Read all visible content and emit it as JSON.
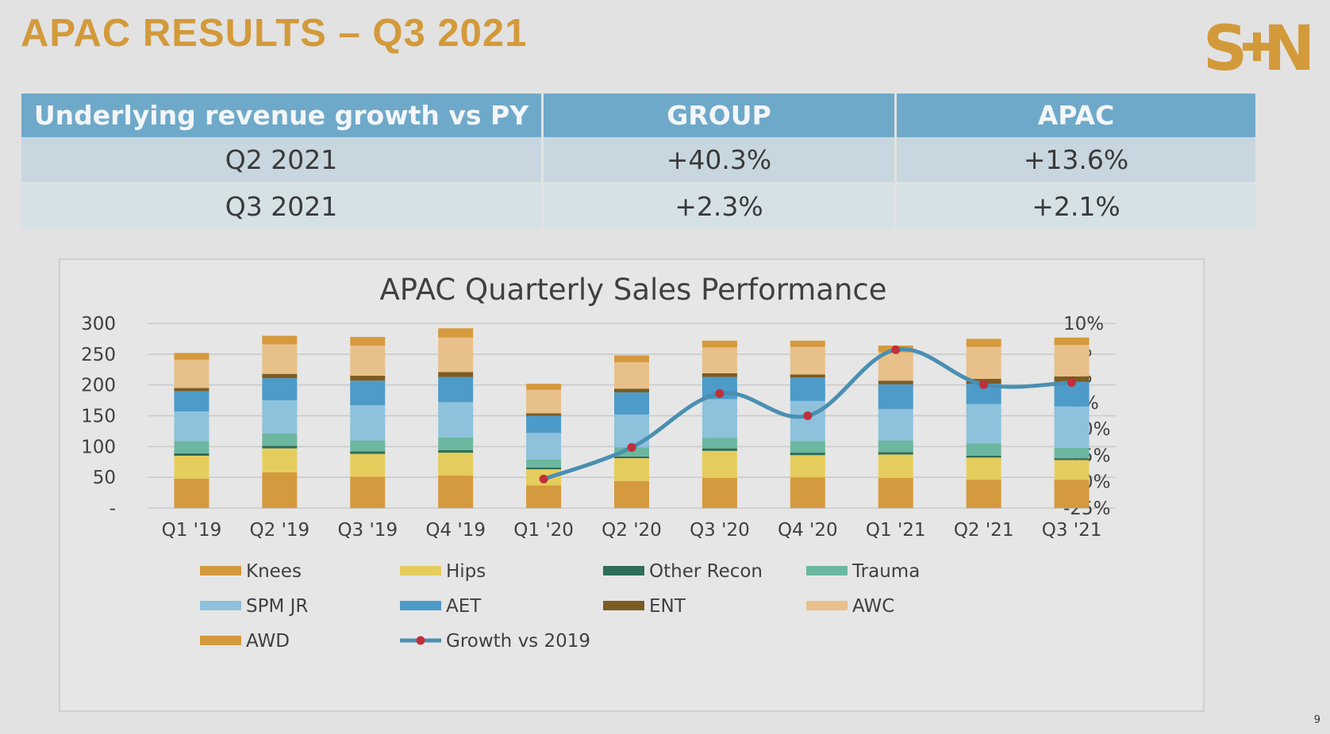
{
  "slide": {
    "title": "APAC RESULTS – Q3 2021",
    "logo_text": "S+N",
    "page_number": "9"
  },
  "table": {
    "headers": [
      "Underlying revenue growth vs PY",
      "GROUP",
      "APAC"
    ],
    "rows": [
      [
        "Q2 2021",
        "+40.3%",
        "+13.6%"
      ],
      [
        "Q3 2021",
        "+2.3%",
        "+2.1%"
      ]
    ]
  },
  "colors": {
    "title": "#d39a3a",
    "header": "#6fa9ca",
    "line": "#4a8fb2",
    "marker": "#c0303a"
  },
  "chart_data": {
    "type": "bar",
    "stacked": true,
    "title": "APAC Quarterly Sales Performance",
    "categories": [
      "Q1 '19",
      "Q2 '19",
      "Q3 '19",
      "Q4 '19",
      "Q1 '20",
      "Q2 '20",
      "Q3 '20",
      "Q4 '20",
      "Q1 '21",
      "Q2 '21",
      "Q3 '21"
    ],
    "ylim": [
      0,
      300
    ],
    "yticks": [
      "-",
      "50",
      "100",
      "150",
      "200",
      "250",
      "300"
    ],
    "y2lim": [
      -25,
      10
    ],
    "y2ticks": [
      "-25%",
      "-20%",
      "-15%",
      "-10%",
      "-5%",
      "0%",
      "5%",
      "10%"
    ],
    "grid": true,
    "legend_position": "bottom",
    "series": [
      {
        "name": "Knees",
        "color": "#d59a3d",
        "values": [
          48,
          58,
          51,
          53,
          37,
          44,
          49,
          50,
          49,
          46,
          46
        ]
      },
      {
        "name": "Hips",
        "color": "#e5cd5d",
        "values": [
          37,
          39,
          37,
          37,
          26,
          37,
          44,
          36,
          38,
          36,
          32
        ]
      },
      {
        "name": "Other Recon",
        "color": "#2f6e58",
        "values": [
          4,
          4,
          4,
          4,
          3,
          3,
          4,
          4,
          4,
          3,
          3
        ]
      },
      {
        "name": "Trauma",
        "color": "#6cb79f",
        "values": [
          20,
          20,
          18,
          21,
          13,
          15,
          17,
          19,
          19,
          20,
          17
        ]
      },
      {
        "name": "SPM JR",
        "color": "#8ec1dc",
        "values": [
          48,
          54,
          57,
          57,
          43,
          53,
          63,
          65,
          51,
          64,
          67
        ]
      },
      {
        "name": "AET",
        "color": "#4d9bc8",
        "values": [
          33,
          36,
          40,
          41,
          28,
          36,
          36,
          38,
          40,
          33,
          40
        ]
      },
      {
        "name": "ENT",
        "color": "#7d5c22",
        "values": [
          5,
          7,
          8,
          8,
          4,
          6,
          6,
          5,
          6,
          8,
          9
        ]
      },
      {
        "name": "AWC",
        "color": "#e8c08a",
        "values": [
          46,
          48,
          49,
          56,
          38,
          43,
          42,
          45,
          46,
          52,
          51
        ]
      },
      {
        "name": "AWD",
        "color": "#d59a3d",
        "values": [
          11,
          14,
          14,
          15,
          10,
          11,
          11,
          10,
          11,
          13,
          12
        ]
      }
    ],
    "line_series": {
      "name": "Growth vs 2019",
      "axis": "secondary",
      "color": "#4a8fb2",
      "values": [
        null,
        null,
        null,
        null,
        -19.5,
        -13.5,
        -3.3,
        -7.5,
        5.0,
        -1.6,
        -1.2
      ]
    }
  }
}
